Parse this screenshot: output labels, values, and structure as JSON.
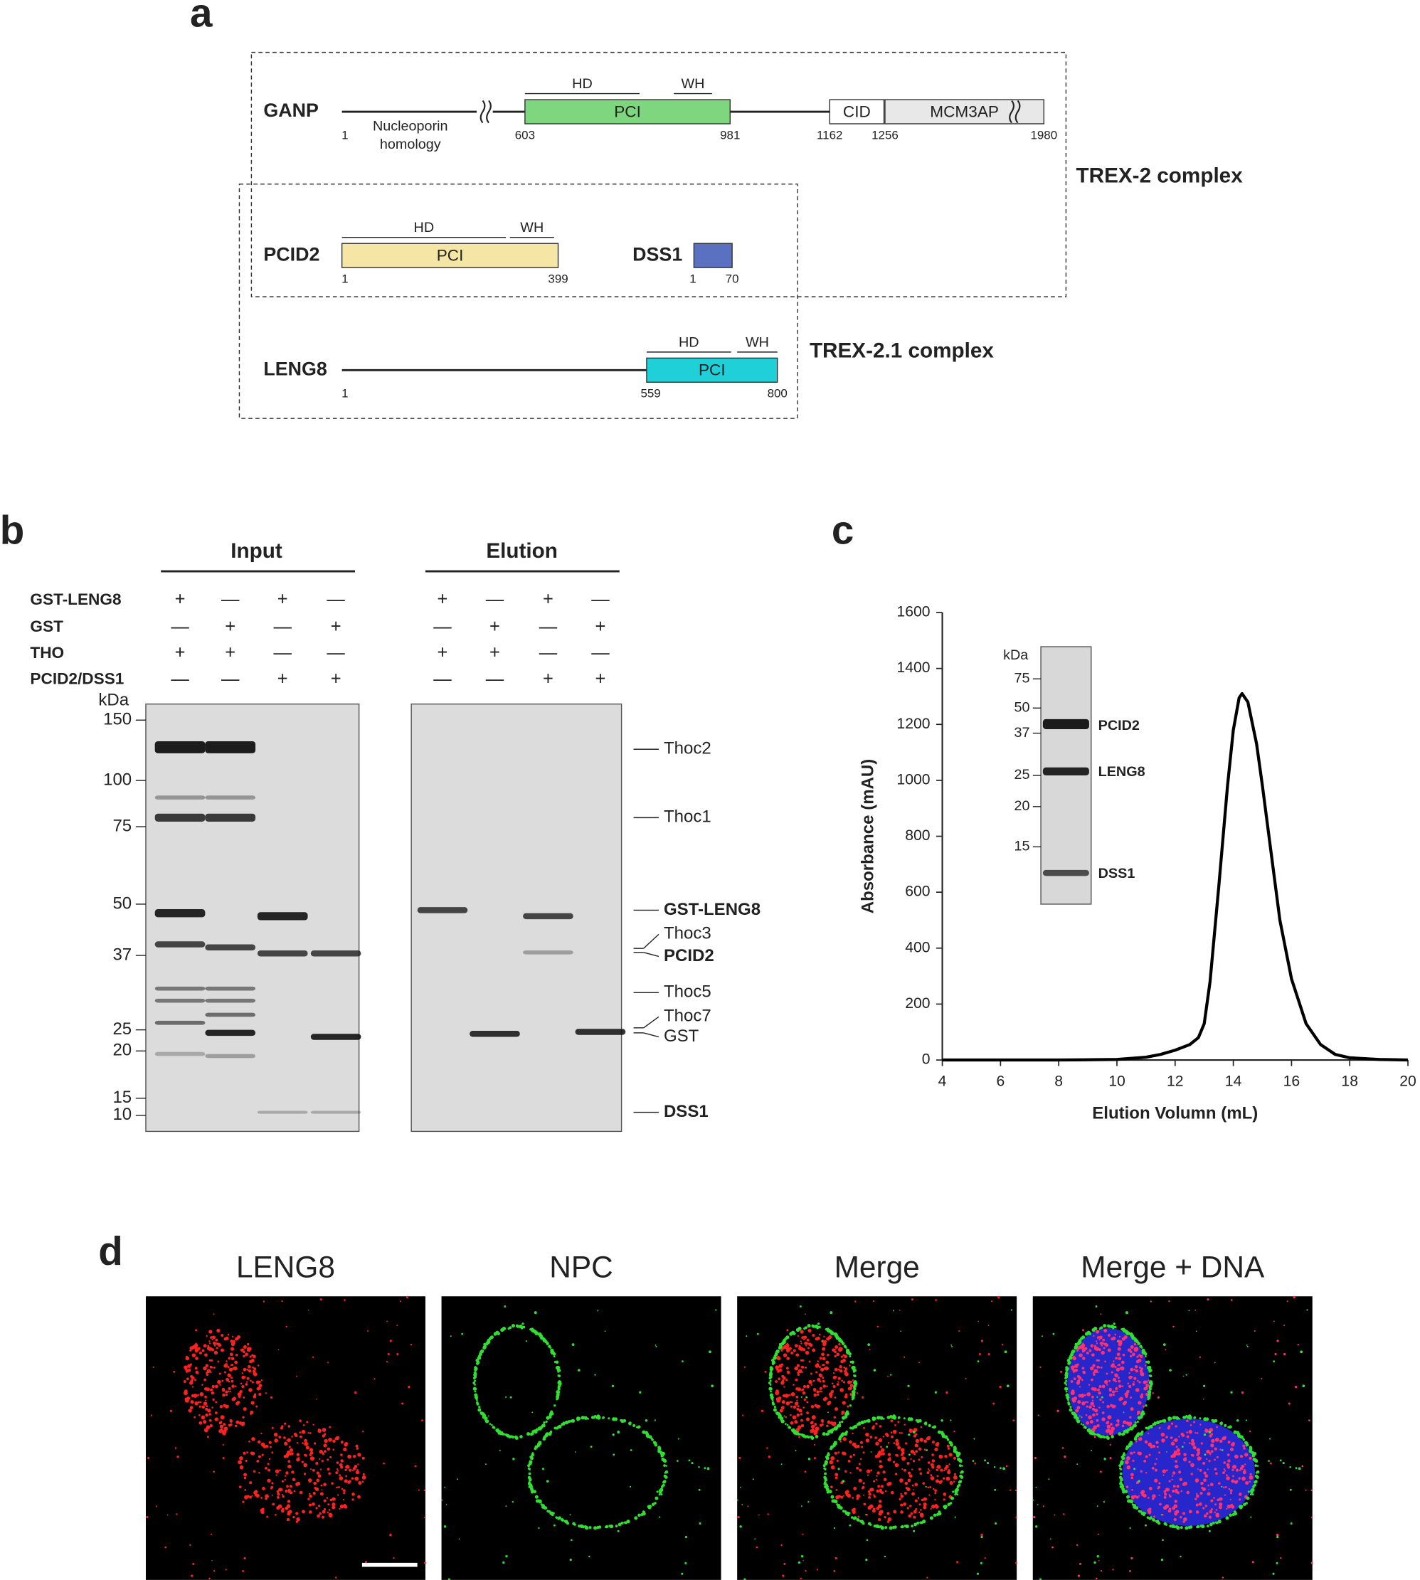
{
  "panel_labels": [
    "a",
    "b",
    "c",
    "d"
  ],
  "panel_a": {
    "proteins": [
      {
        "name": "GANP",
        "domains": [
          {
            "label": "PCI",
            "color": "#7ed67e"
          },
          {
            "label": "CID",
            "color": "#ffffff"
          },
          {
            "label": "MCM3AP",
            "color": "#e8e8e8"
          }
        ],
        "features": [
          "HD",
          "WH"
        ],
        "positions": [
          1,
          603,
          981,
          1162,
          1256,
          1980
        ],
        "annotation": [
          "Nucleoporin",
          "homology"
        ]
      },
      {
        "name": "PCID2",
        "domains": [
          {
            "label": "PCI",
            "color": "#f6e6a6"
          }
        ],
        "features": [
          "HD",
          "WH"
        ],
        "positions": [
          1,
          399
        ]
      },
      {
        "name": "DSS1",
        "domains": [
          {
            "label": "",
            "color": "#5a70c0"
          }
        ],
        "features": [],
        "positions": [
          1,
          70
        ]
      },
      {
        "name": "LENG8",
        "domains": [
          {
            "label": "PCI",
            "color": "#1fd0d8"
          }
        ],
        "features": [
          "HD",
          "WH"
        ],
        "positions": [
          1,
          559,
          800
        ]
      }
    ],
    "complexes": [
      "TREX-2 complex",
      "TREX-2.1 complex"
    ]
  },
  "panel_b": {
    "groups": [
      "Input",
      "Elution"
    ],
    "conditions": [
      {
        "name": "GST-LENG8",
        "signs": [
          "+",
          "—",
          "+",
          "—",
          "+",
          "—",
          "+",
          "—"
        ]
      },
      {
        "name": "GST",
        "signs": [
          "—",
          "+",
          "—",
          "+",
          "—",
          "+",
          "—",
          "+"
        ]
      },
      {
        "name": "THO",
        "signs": [
          "+",
          "+",
          "—",
          "—",
          "+",
          "+",
          "—",
          "—"
        ]
      },
      {
        "name": "PCID2/DSS1",
        "signs": [
          "—",
          "—",
          "+",
          "+",
          "—",
          "—",
          "+",
          "+"
        ]
      }
    ],
    "marker_unit": "kDa",
    "markers": [
      150,
      100,
      75,
      50,
      37,
      25,
      20,
      15,
      10
    ],
    "band_labels": [
      {
        "text": "Thoc2",
        "color": "#222222"
      },
      {
        "text": "Thoc1",
        "color": "#222222"
      },
      {
        "text": "GST-LENG8",
        "color": "#2bb5b5"
      },
      {
        "text": "Thoc3",
        "color": "#222222"
      },
      {
        "text": "PCID2",
        "color": "#c8a83c"
      },
      {
        "text": "Thoc5",
        "color": "#222222"
      },
      {
        "text": "Thoc7",
        "color": "#222222"
      },
      {
        "text": "GST",
        "color": "#222222"
      },
      {
        "text": "DSS1",
        "color": "#6b8fd0"
      }
    ]
  },
  "chart_data": {
    "type": "line",
    "x_label": "Elution Volumn (mL)",
    "y_label": "Absorbance (mAU)",
    "x": [
      4,
      6,
      8,
      10,
      11,
      11.5,
      12,
      12.5,
      12.8,
      13,
      13.2,
      13.5,
      13.8,
      14,
      14.2,
      14.3,
      14.5,
      14.8,
      15,
      15.3,
      15.6,
      16,
      16.5,
      17,
      17.5,
      18,
      19,
      20
    ],
    "values": [
      0,
      0,
      0,
      2,
      10,
      20,
      35,
      55,
      80,
      130,
      280,
      620,
      980,
      1180,
      1295,
      1310,
      1280,
      1130,
      980,
      740,
      500,
      290,
      130,
      55,
      20,
      8,
      2,
      0
    ],
    "color": "#000000",
    "xlim": [
      4,
      20
    ],
    "ylim": [
      0,
      1600
    ],
    "xticks": [
      4,
      6,
      8,
      10,
      12,
      14,
      16,
      18,
      20
    ],
    "yticks": [
      0,
      200,
      400,
      600,
      800,
      1000,
      1200,
      1400,
      1600
    ],
    "inset": {
      "marker_unit": "kDa",
      "markers": [
        75,
        50,
        37,
        25,
        20,
        15
      ],
      "bands": [
        "PCID2",
        "LENG8",
        "DSS1"
      ]
    }
  },
  "panel_d": {
    "titles": [
      "LENG8",
      "NPC",
      "Merge",
      "Merge + DNA"
    ]
  }
}
